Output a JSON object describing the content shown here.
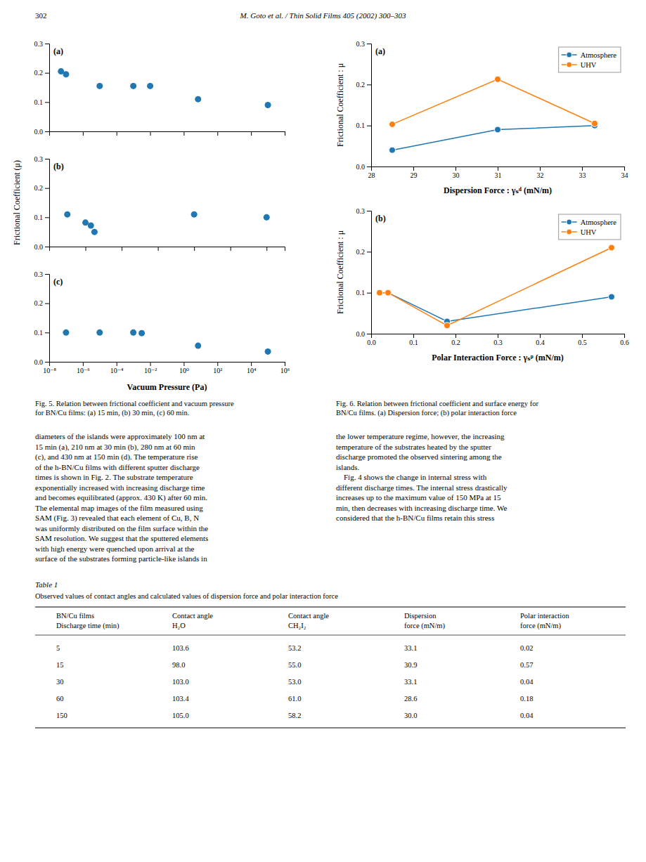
{
  "page": {
    "header_left": "302",
    "header_center": "M. Goto et al. / Thin Solid Films 405 (2002) 300–303",
    "body_text": [
      "diameters of the islands were approximately 100 nm at\n15 min (a), 210 nm at 30 min (b), 280 nm at 60 min\n(c), and 430 nm at 150 min (d). The temperature rise\nof the h-BN/Cu films with different sputter discharge\ntimes is shown in Fig. 2. The substrate temperature\nexponentially increased with increasing discharge time\nand becomes equilibrated (approx. 430 K) after 60 min.\nThe elemental map images of the film measured using\nSAM (Fig. 3) revealed that each element of Cu, B, N\nwas uniformly distributed on the film surface within the\nSAM resolution. We suggest that the sputtered elements\nwith high energy were quenched upon arrival at the\nsurface of the substrates forming particle-like islands in",
      "the lower temperature regime, however, the increasing\ntemperature of the substrates heated by the sputter\ndischarge promoted the observed sintering among the\nislands.\n    Fig. 4 shows the change in internal stress with\ndifferent discharge times. The internal stress drastically\nincreases up to the maximum value of 150 MPa at 15\nmin, then decreases with increasing discharge time. We\nconsidered that the h-BN/Cu films retain this stress"
    ],
    "table": {
      "title": "Table 1",
      "subtitle": "Observed values of contact angles and calculated values of dispersion force and polar interaction force",
      "columns": [
        [
          "BN/Cu films",
          "Discharge time (min)"
        ],
        [
          "Contact angle",
          "H₂O"
        ],
        [
          "Contact angle",
          "CH₂I₂"
        ],
        [
          "Dispersion",
          "force (mN/m)"
        ],
        [
          "Polar interaction",
          "force (mN/m)"
        ]
      ],
      "rows": [
        [
          "5",
          "103.6",
          "53.2",
          "33.1",
          "0.02"
        ],
        [
          "15",
          "98.0",
          "55.0",
          "30.9",
          "0.57"
        ],
        [
          "30",
          "103.0",
          "53.0",
          "33.1",
          "0.04"
        ],
        [
          "60",
          "103.4",
          "61.0",
          "28.6",
          "0.18"
        ],
        [
          "150",
          "105.0",
          "58.2",
          "30.0",
          "0.04"
        ]
      ]
    }
  },
  "chart_data": [
    {
      "type": "scatter",
      "title": "(a)",
      "log": "x",
      "marker": "circle",
      "grid": false,
      "tick_labels": "y",
      "x": [
        1e-07,
        5.011872336272725e-08,
        1e-05,
        0.001,
        0.01,
        7.07945784384138,
        100000
      ],
      "values": [
        0.195,
        0.205,
        0.155,
        0.155,
        0.155,
        0.11,
        0.09
      ],
      "xlim": [
        1e-08,
        1000000
      ],
      "ylim": [
        0.0,
        0.3
      ],
      "xticks": [
        1e-08,
        1e-06,
        0.0001,
        0.01,
        1,
        100,
        10000,
        1000000
      ],
      "yticks": [
        {
          "value": 0.0,
          "label": "0.0"
        },
        0.1,
        0.2,
        0.3
      ]
    },
    {
      "type": "scatter",
      "title": "(b)",
      "ylabel": "Frictional Coefficient (μ)",
      "log": "x",
      "marker": "circle",
      "grid": false,
      "tick_labels": "y",
      "x": [
        1e-06,
        1e-05,
        1.9952623149688786e-05,
        3.1622776601683795e-05,
        10,
        100000
      ],
      "values": [
        0.11,
        0.082,
        0.072,
        0.05,
        0.11,
        0.1
      ],
      "xlim": [
        1e-07,
        1000000
      ],
      "ylim": [
        0.0,
        0.3
      ],
      "xticks": [
        1e-07,
        1e-05,
        0.001,
        0.1,
        10,
        1000,
        100000
      ],
      "yticks": [
        {
          "value": 0.0,
          "label": "0.0"
        },
        0.1,
        0.2,
        0.3
      ]
    },
    {
      "type": "scatter",
      "title": "(c)",
      "xlabel": "Vacuum Pressure (Pa)",
      "annotations": [
        "Fig. 5. Relation between frictional coefficient and vacuum pressure\nfor BN/Cu films: (a) 15 min, (b) 30 min, (c) 60 min."
      ],
      "log": "x",
      "marker": "circle",
      "grid": false,
      "x": [
        1e-07,
        1e-05,
        0.001,
        0.0031622776601683794,
        7.07945784384138,
        100000
      ],
      "values": [
        0.1,
        0.1,
        0.1,
        0.098,
        0.055,
        0.035
      ],
      "xlim": [
        1e-08,
        1000000
      ],
      "ylim": [
        0.0,
        0.3
      ],
      "xticks": [
        {
          "value": 1e-08,
          "label": "10⁻⁸"
        },
        {
          "value": 1e-06,
          "label": "10⁻⁶"
        },
        {
          "value": 0.0001,
          "label": "10⁻⁴"
        },
        {
          "value": 0.01,
          "label": "10⁻²"
        },
        {
          "value": 1,
          "label": "10⁰"
        },
        {
          "value": 100,
          "label": "10²"
        },
        {
          "value": 10000,
          "label": "10⁴"
        },
        {
          "value": 1000000,
          "label": "10⁶"
        }
      ],
      "yticks": [
        {
          "value": 0.0,
          "label": "0.0"
        },
        0.1,
        0.2,
        0.3
      ]
    },
    {
      "type": "line",
      "title": "(a)",
      "xlabel": "Dispersion Force : γₛᵈ (mN/m)",
      "ylabel": "Frictional Coefficient : μ",
      "legend": "upper right",
      "grid": false,
      "x": [
        28.5,
        31.0,
        33.3
      ],
      "series": [
        {
          "name": "Atmosphere",
          "marker": "circle",
          "values": [
            0.04,
            0.09,
            0.1
          ]
        },
        {
          "name": "UHV",
          "marker": "circle",
          "values": [
            0.103,
            0.213,
            0.105
          ]
        }
      ],
      "xlim": [
        28,
        34
      ],
      "ylim": [
        0.0,
        0.3
      ],
      "xticks": [
        28,
        29,
        30,
        31,
        32,
        33,
        34
      ],
      "yticks": [
        {
          "value": 0.0,
          "label": "0.0"
        },
        0.1,
        0.2,
        0.3
      ]
    },
    {
      "type": "line",
      "title": "(b)",
      "xlabel": "Polar Interaction Force : γₛᵖ (mN/m)",
      "ylabel": "Frictional Coefficient : μ",
      "annotations": [
        "Fig. 6. Relation between frictional coefficient and surface energy for\nBN/Cu films. (a) Dispersion force; (b) polar interaction force"
      ],
      "legend": "upper right",
      "grid": false,
      "x": [
        0.02,
        0.04,
        0.18,
        0.57
      ],
      "series": [
        {
          "name": "Atmosphere",
          "marker": "circle",
          "values": [
            0.1,
            0.1,
            0.03,
            0.09
          ]
        },
        {
          "name": "UHV",
          "marker": "circle",
          "values": [
            0.1,
            0.1,
            0.02,
            0.21
          ]
        }
      ],
      "xlim": [
        0.0,
        0.6
      ],
      "ylim": [
        0.0,
        0.3
      ],
      "xticks": [
        {
          "value": 0.0,
          "label": "0.0"
        },
        0.1,
        0.2,
        0.3,
        0.4,
        0.5,
        0.6
      ],
      "yticks": [
        {
          "value": 0.0,
          "label": "0.0"
        },
        0.1,
        0.2,
        0.3
      ]
    }
  ]
}
